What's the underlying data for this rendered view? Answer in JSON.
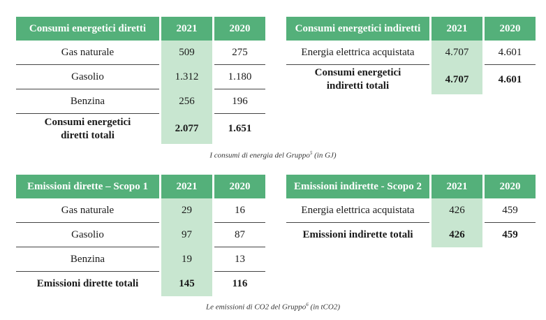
{
  "tables": {
    "t1": {
      "headers": [
        "Consumi energetici diretti",
        "2021",
        "2020"
      ],
      "rows": [
        {
          "label": "Gas naturale",
          "y2021": "509",
          "y2020": "275"
        },
        {
          "label": "Gasolio",
          "y2021": "1.312",
          "y2020": "1.180"
        },
        {
          "label": "Benzina",
          "y2021": "256",
          "y2020": "196"
        },
        {
          "label": "Consumi energetici diretti totali",
          "y2021": "2.077",
          "y2020": "1.651"
        }
      ]
    },
    "t2": {
      "headers": [
        "Consumi energetici indiretti",
        "2021",
        "2020"
      ],
      "rows": [
        {
          "label": "Energia elettrica acquistata",
          "y2021": "4.707",
          "y2020": "4.601"
        },
        {
          "label": "Consumi energetici indiretti totali",
          "y2021": "4.707",
          "y2020": "4.601"
        }
      ]
    },
    "t3": {
      "headers": [
        "Emissioni dirette – Scopo 1",
        "2021",
        "2020"
      ],
      "rows": [
        {
          "label": "Gas naturale",
          "y2021": "29",
          "y2020": "16"
        },
        {
          "label": "Gasolio",
          "y2021": "97",
          "y2020": "87"
        },
        {
          "label": "Benzina",
          "y2021": "19",
          "y2020": "13"
        },
        {
          "label": "Emissioni dirette totali",
          "y2021": "145",
          "y2020": "116"
        }
      ]
    },
    "t4": {
      "headers": [
        "Emissioni indirette - Scopo 2",
        "2021",
        "2020"
      ],
      "rows": [
        {
          "label": "Energia elettrica acquistata",
          "y2021": "426",
          "y2020": "459"
        },
        {
          "label": "Emissioni indirette totali",
          "y2021": "426",
          "y2020": "459"
        }
      ]
    }
  },
  "captions": {
    "energy": {
      "text": "I consumi di energia del Gruppo",
      "note": "5",
      "unit": " (in GJ)"
    },
    "emissions": {
      "text": "Le emissioni di CO2 del Gruppo",
      "note": "6",
      "unit": " (in tCO2)"
    }
  }
}
